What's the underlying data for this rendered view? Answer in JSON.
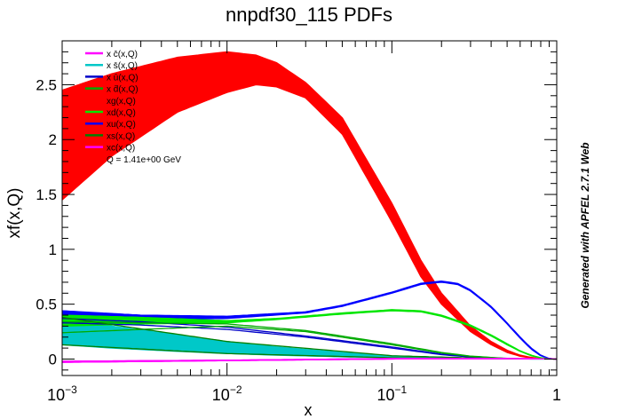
{
  "chart_data": {
    "type": "area",
    "title": "nnpdf30_115 PDFs",
    "xlabel": "x",
    "ylabel": "xf(x,Q)",
    "xscale": "log",
    "xlim": [
      0.001,
      1
    ],
    "ylim": [
      -0.15,
      2.9
    ],
    "grid": false,
    "legend_position": "top-left",
    "x_ticks": [
      {
        "value": 0.001,
        "base": "10",
        "exp": "−3"
      },
      {
        "value": 0.01,
        "base": "10",
        "exp": "−2"
      },
      {
        "value": 0.1,
        "base": "10",
        "exp": "−1"
      },
      {
        "value": 1,
        "base": "1",
        "exp": ""
      }
    ],
    "y_ticks": [
      {
        "value": 0,
        "label": "0"
      },
      {
        "value": 0.5,
        "label": "0.5"
      },
      {
        "value": 1,
        "label": "1"
      },
      {
        "value": 1.5,
        "label": "1.5"
      },
      {
        "value": 2,
        "label": "2"
      },
      {
        "value": 2.5,
        "label": "2.5"
      }
    ],
    "annotation": "Q = 1.41e+00 GeV",
    "series": [
      {
        "name": "x c̄(x,Q)",
        "color": "#ff00ff",
        "style": "line",
        "x": [
          0.001,
          0.01,
          0.1,
          0.5,
          0.8,
          1.0
        ],
        "lower": [
          -0.03,
          -0.015,
          0.0,
          0.003,
          0.001,
          0.0
        ],
        "upper": [
          -0.02,
          -0.01,
          0.005,
          0.006,
          0.003,
          0.0
        ]
      },
      {
        "name": "x s̄(x,Q)",
        "color": "#00c8c8",
        "style": "band",
        "x": [
          0.001,
          0.002,
          0.005,
          0.01,
          0.02,
          0.05,
          0.1,
          0.2,
          0.4,
          0.7,
          1.0
        ],
        "lower": [
          0.13,
          0.1,
          0.07,
          0.05,
          0.035,
          0.02,
          0.012,
          0.006,
          0.002,
          0.0,
          0.0
        ],
        "upper": [
          0.38,
          0.3,
          0.22,
          0.16,
          0.11,
          0.06,
          0.03,
          0.015,
          0.006,
          0.001,
          0.0
        ]
      },
      {
        "name": "x ū(x,Q)",
        "color": "#0000c8",
        "style": "line",
        "x": [
          0.001,
          0.003,
          0.01,
          0.03,
          0.1,
          0.2,
          0.3,
          0.5,
          0.7,
          1.0
        ],
        "lower": [
          0.33,
          0.31,
          0.27,
          0.2,
          0.1,
          0.04,
          0.018,
          0.004,
          0.001,
          0.0
        ],
        "upper": [
          0.37,
          0.34,
          0.29,
          0.21,
          0.11,
          0.045,
          0.02,
          0.005,
          0.001,
          0.0
        ]
      },
      {
        "name": "x d̄(x,Q)",
        "color": "#00aa00",
        "style": "line",
        "x": [
          0.001,
          0.003,
          0.01,
          0.03,
          0.1,
          0.2,
          0.3,
          0.5,
          0.7,
          1.0
        ],
        "lower": [
          0.24,
          0.27,
          0.3,
          0.25,
          0.13,
          0.055,
          0.025,
          0.005,
          0.001,
          0.0
        ],
        "upper": [
          0.34,
          0.33,
          0.32,
          0.26,
          0.14,
          0.06,
          0.027,
          0.006,
          0.001,
          0.0
        ]
      },
      {
        "name": "xg(x,Q)",
        "color": "#ff0000",
        "style": "band",
        "x": [
          0.001,
          0.002,
          0.005,
          0.01,
          0.015,
          0.02,
          0.03,
          0.05,
          0.1,
          0.15,
          0.2,
          0.3,
          0.4,
          0.5,
          0.6,
          0.7,
          0.8,
          0.9,
          1.0
        ],
        "lower": [
          1.45,
          1.85,
          2.25,
          2.43,
          2.5,
          2.48,
          2.38,
          2.05,
          1.25,
          0.75,
          0.5,
          0.25,
          0.13,
          0.06,
          0.025,
          0.01,
          0.003,
          0.0,
          0.0
        ],
        "upper": [
          2.45,
          2.6,
          2.75,
          2.8,
          2.77,
          2.7,
          2.52,
          2.2,
          1.42,
          0.9,
          0.6,
          0.3,
          0.16,
          0.08,
          0.035,
          0.015,
          0.004,
          0.001,
          0.0
        ]
      },
      {
        "name": "xd(x,Q)",
        "color": "#00e600",
        "style": "band",
        "x": [
          0.001,
          0.003,
          0.01,
          0.02,
          0.05,
          0.1,
          0.15,
          0.2,
          0.3,
          0.4,
          0.5,
          0.6,
          0.7,
          0.8,
          0.9,
          1.0
        ],
        "lower": [
          0.3,
          0.32,
          0.33,
          0.36,
          0.41,
          0.44,
          0.43,
          0.39,
          0.3,
          0.21,
          0.13,
          0.07,
          0.03,
          0.01,
          0.001,
          0.0
        ],
        "upper": [
          0.4,
          0.38,
          0.35,
          0.37,
          0.42,
          0.45,
          0.44,
          0.4,
          0.31,
          0.22,
          0.14,
          0.075,
          0.035,
          0.012,
          0.002,
          0.0
        ]
      },
      {
        "name": "xu(x,Q)",
        "color": "#0000ff",
        "style": "band",
        "x": [
          0.001,
          0.003,
          0.01,
          0.03,
          0.05,
          0.1,
          0.15,
          0.2,
          0.25,
          0.3,
          0.4,
          0.5,
          0.6,
          0.7,
          0.8,
          0.9,
          1.0
        ],
        "lower": [
          0.35,
          0.36,
          0.37,
          0.42,
          0.48,
          0.6,
          0.68,
          0.7,
          0.68,
          0.62,
          0.47,
          0.32,
          0.19,
          0.09,
          0.03,
          0.003,
          0.0
        ],
        "upper": [
          0.44,
          0.4,
          0.39,
          0.43,
          0.49,
          0.61,
          0.69,
          0.71,
          0.69,
          0.63,
          0.48,
          0.33,
          0.2,
          0.1,
          0.035,
          0.005,
          0.0
        ]
      },
      {
        "name": "xs(x,Q)",
        "color": "#008000",
        "style": "line",
        "x": [
          0.001,
          0.01,
          0.1,
          0.5,
          1.0
        ],
        "lower": [
          0.13,
          0.05,
          0.012,
          0.001,
          0.0
        ],
        "upper": [
          0.38,
          0.16,
          0.03,
          0.002,
          0.0
        ]
      },
      {
        "name": "xc(x,Q)",
        "color": "#ff00ff",
        "style": "line",
        "x": [
          0.001,
          0.01,
          0.1,
          0.5,
          0.8,
          1.0
        ],
        "lower": [
          -0.03,
          -0.015,
          0.0,
          0.003,
          0.001,
          0.0
        ],
        "upper": [
          -0.02,
          -0.01,
          0.005,
          0.006,
          0.003,
          0.0
        ]
      }
    ]
  },
  "side_note": "Generated with APFEL 2.7.1 Web"
}
